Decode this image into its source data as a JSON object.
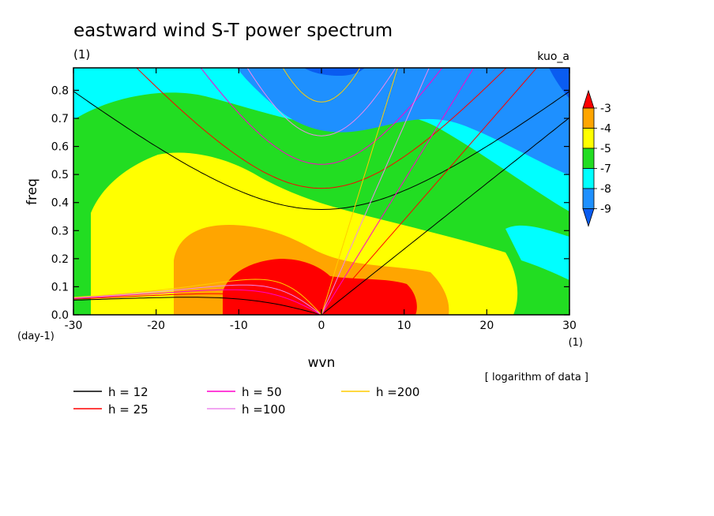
{
  "chart_data": {
    "type": "heatmap",
    "title": "eastward wind S-T power spectrum",
    "subtitle_left": "(1)",
    "subtitle_right": "kuo_a",
    "xlabel": "wvn",
    "ylabel": "freq",
    "x_unit": "(1)",
    "y_unit": "(day-1)",
    "xlim": [
      -30,
      30
    ],
    "ylim": [
      0,
      0.88
    ],
    "x_ticks": [
      "-30",
      "-20",
      "-10",
      "0",
      "10",
      "20",
      "30"
    ],
    "x_tick_values": [
      -30,
      -20,
      -10,
      0,
      10,
      20,
      30
    ],
    "y_ticks": [
      "0.0",
      "0.1",
      "0.2",
      "0.3",
      "0.4",
      "0.5",
      "0.6",
      "0.7",
      "0.8"
    ],
    "y_tick_values": [
      0,
      0.1,
      0.2,
      0.3,
      0.4,
      0.5,
      0.6,
      0.7,
      0.8
    ],
    "colorbar": {
      "labels": [
        "-3",
        "-4",
        "-5",
        "-7",
        "-8",
        "-9"
      ],
      "levels": [
        -3,
        -4,
        -5,
        -7,
        -8,
        -9
      ],
      "colors": [
        "#ff0000",
        "#ffa500",
        "#ffff00",
        "#22dd22",
        "#00ffff",
        "#1e90ff",
        "#0a5cf0"
      ]
    },
    "note": "[ logarithm of data ]",
    "filled_bands": [
      {
        "level": "-9",
        "color": "#1e90ff",
        "region": [
          [
            -30,
            0.88
          ],
          [
            30,
            0.88
          ],
          [
            30,
            0.88
          ]
        ]
      }
    ],
    "series": [
      {
        "name": "h = 12",
        "color": "#000000",
        "equivalent_depth": 12
      },
      {
        "name": "h = 25",
        "color": "#ff0000",
        "equivalent_depth": 25
      },
      {
        "name": "h = 50",
        "color": "#ff00cc",
        "equivalent_depth": 50
      },
      {
        "name": "h =100",
        "color": "#ee88ee",
        "equivalent_depth": 100
      },
      {
        "name": "h =200",
        "color": "#ffcc00",
        "equivalent_depth": 200
      }
    ],
    "legend_position": "bottom-left"
  }
}
